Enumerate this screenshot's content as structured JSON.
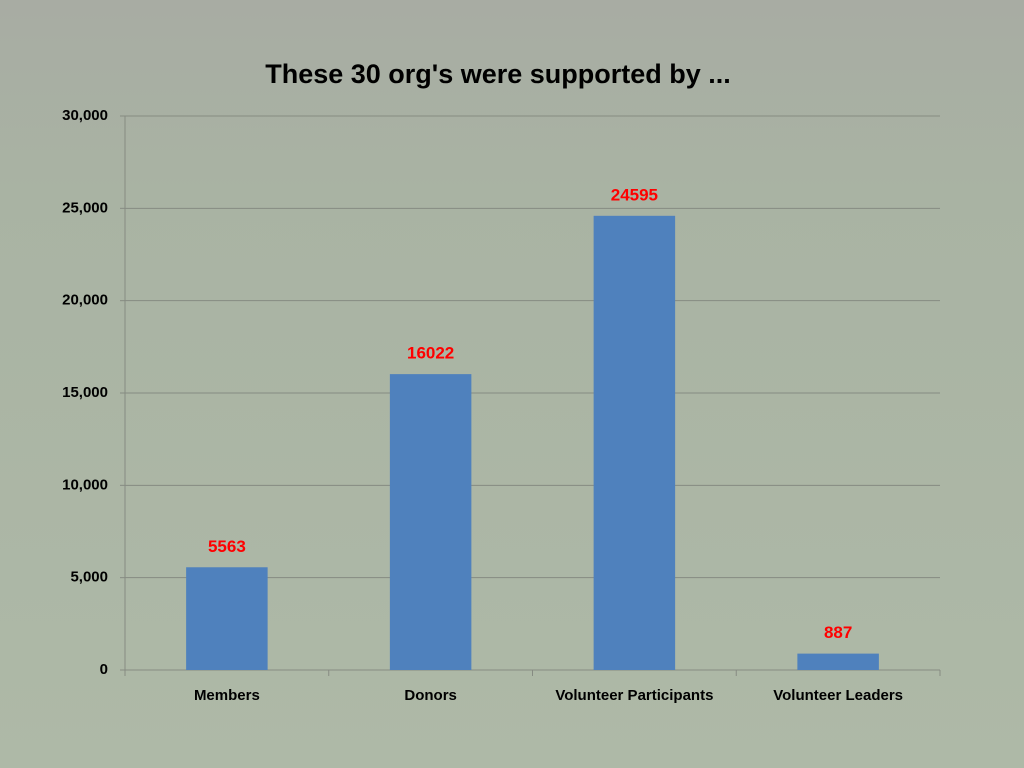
{
  "chart_data": {
    "type": "bar",
    "title": "These 30 org's were supported by ...",
    "categories": [
      "Members",
      "Donors",
      "Volunteer Participants",
      "Volunteer Leaders"
    ],
    "values": [
      5563,
      16022,
      24595,
      887
    ],
    "color": "#4f81bd",
    "value_label_color": "#ff0000",
    "ylim": [
      0,
      30000
    ],
    "yticks": [
      0,
      {
        "value": 5000,
        "label": "5,000"
      },
      {
        "value": 10000,
        "label": "10,000"
      },
      {
        "value": 15000,
        "label": "15,000"
      },
      {
        "value": 20000,
        "label": "20,000"
      },
      {
        "value": 25000,
        "label": "25,000"
      },
      {
        "value": 30000,
        "label": "30,000"
      }
    ],
    "grid": true
  }
}
